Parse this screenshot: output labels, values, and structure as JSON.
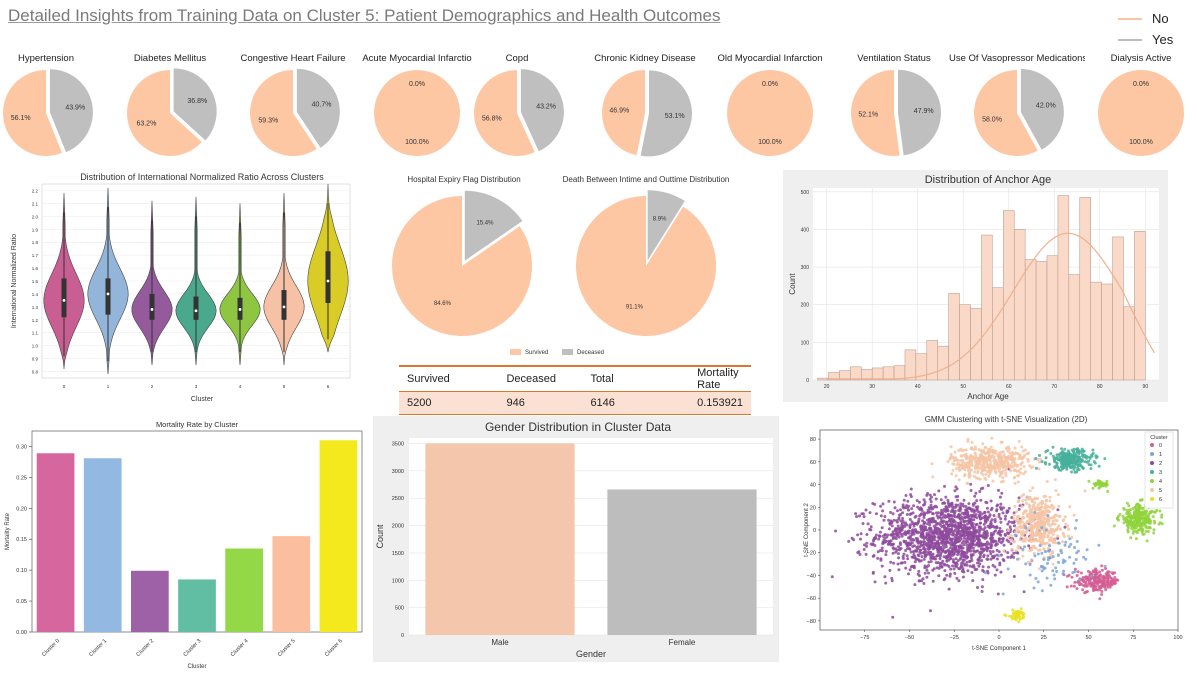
{
  "dashboard": {
    "title": "Detailed Insights from Training Data on  Cluster 5: Patient Demographics and Health Outcomes",
    "legend": [
      {
        "label": "No",
        "color": "#f7c5a5"
      },
      {
        "label": "Yes",
        "color": "#bdbdbd"
      }
    ]
  },
  "colors": {
    "no": "#fdc7a4",
    "yes": "#bfbfbf",
    "panel": "#efefef"
  },
  "chart_data": [
    {
      "id": "condition-pies",
      "type": "pie",
      "series": [
        {
          "name": "Hypertension",
          "no": 56.1,
          "yes": 43.9
        },
        {
          "name": "Diabetes Mellitus",
          "no": 63.2,
          "yes": 36.8
        },
        {
          "name": "Congestive Heart Failure",
          "no": 59.3,
          "yes": 40.7
        },
        {
          "name": "Acute Myocardial Infarctio",
          "no": 100.0,
          "yes": 0.0
        },
        {
          "name": "Copd",
          "no": 56.8,
          "yes": 43.2
        },
        {
          "name": "Chronic Kidney Disease",
          "no": 46.9,
          "yes": 53.1
        },
        {
          "name": "Old Myocardial Infarction",
          "no": 100.0,
          "yes": 0.0
        },
        {
          "name": "Ventilation Status",
          "no": 52.1,
          "yes": 47.9
        },
        {
          "name": "Use Of Vasopressor Medications",
          "no": 58.0,
          "yes": 42.0
        },
        {
          "name": "Dialysis Active",
          "no": 100.0,
          "yes": 0.0
        }
      ]
    },
    {
      "id": "inr-violin",
      "type": "violin",
      "title": "Distribution of International Normalized Ratio Across Clusters",
      "xlabel": "Cluster",
      "ylabel": "International Normalized Ratio",
      "categories": [
        "0",
        "1",
        "2",
        "3",
        "4",
        "5",
        "6"
      ],
      "yticks": [
        "0.8",
        "0.9",
        "1.0",
        "1.1",
        "1.2",
        "1.3",
        "1.4",
        "1.5",
        "1.6",
        "1.7",
        "1.8",
        "1.9",
        "2.0",
        "2.1",
        "2.2"
      ],
      "ylim": [
        0.75,
        2.25
      ],
      "colors": [
        "#c95e93",
        "#93b5d9",
        "#955a9c",
        "#4aa88d",
        "#8ec641",
        "#f6c1a4",
        "#d9cc26"
      ],
      "stats": [
        {
          "min": 0.82,
          "q1": 1.22,
          "median": 1.35,
          "q3": 1.52,
          "max": 2.18
        },
        {
          "min": 0.78,
          "q1": 1.24,
          "median": 1.4,
          "q3": 1.52,
          "max": 2.22
        },
        {
          "min": 0.85,
          "q1": 1.2,
          "median": 1.28,
          "q3": 1.4,
          "max": 2.12
        },
        {
          "min": 0.85,
          "q1": 1.2,
          "median": 1.27,
          "q3": 1.38,
          "max": 2.15
        },
        {
          "min": 0.85,
          "q1": 1.2,
          "median": 1.28,
          "q3": 1.37,
          "max": 2.1
        },
        {
          "min": 0.85,
          "q1": 1.2,
          "median": 1.3,
          "q3": 1.43,
          "max": 2.18
        },
        {
          "min": 0.95,
          "q1": 1.33,
          "median": 1.5,
          "q3": 1.73,
          "max": 2.25
        }
      ]
    },
    {
      "id": "expiry-pie",
      "type": "pie",
      "title": "Hospital Expiry Flag Distribution",
      "labels": [
        "Survived",
        "Deceased"
      ],
      "values": [
        84.6,
        15.4
      ]
    },
    {
      "id": "death-pie",
      "type": "pie",
      "title": "Death Between Intime and Outtime Distribution",
      "labels": [
        "Survived",
        "Deceased"
      ],
      "values": [
        91.1,
        8.9
      ]
    },
    {
      "id": "mortality-table",
      "type": "table",
      "headers": [
        "Survived",
        "Deceased",
        "Total",
        "Mortality Rate"
      ],
      "rows": [
        [
          "5200",
          "946",
          "6146",
          "0.153921"
        ]
      ]
    },
    {
      "id": "anchor-age-hist",
      "type": "bar",
      "title": "Distribution of Anchor Age",
      "xlabel": "Anchor Age",
      "ylabel": "Count",
      "xlim": [
        17,
        93
      ],
      "ylim": [
        0,
        510
      ],
      "xticks": [
        20,
        30,
        40,
        50,
        60,
        70,
        80,
        90
      ],
      "yticks": [
        0,
        100,
        200,
        300,
        400,
        500
      ],
      "bin_start": 18,
      "bin_width": 2.4,
      "values": [
        5,
        20,
        25,
        35,
        28,
        32,
        35,
        38,
        80,
        70,
        105,
        90,
        230,
        200,
        190,
        385,
        245,
        450,
        400,
        320,
        315,
        330,
        490,
        280,
        485,
        260,
        255,
        380,
        195,
        395
      ]
    },
    {
      "id": "mortality-by-cluster",
      "type": "bar",
      "title": "Mortality Rate by Cluster",
      "xlabel": "Cluster",
      "ylabel": "Mortality Rate",
      "categories": [
        "Cluster 0",
        "Cluster 1",
        "Cluster 2",
        "Cluster 3",
        "Cluster 4",
        "Cluster 5",
        "Cluster 6"
      ],
      "values": [
        0.289,
        0.281,
        0.099,
        0.085,
        0.135,
        0.155,
        0.31
      ],
      "colors": [
        "#d6679e",
        "#93b9e3",
        "#9d62a5",
        "#62bea2",
        "#93d846",
        "#fbbf9f",
        "#f3e91d"
      ],
      "ylim": [
        0,
        0.325
      ],
      "yticks": [
        "0.00",
        "0.05",
        "0.10",
        "0.15",
        "0.20",
        "0.25",
        "0.30"
      ]
    },
    {
      "id": "gender-bars",
      "type": "bar",
      "title": "Gender Distribution in Cluster Data",
      "xlabel": "Gender",
      "ylabel": "Count",
      "categories": [
        "Male",
        "Female"
      ],
      "values": [
        3500,
        2660
      ],
      "colors": [
        "#f4c7ad",
        "#bdbdbd"
      ],
      "ylim": [
        0,
        3600
      ],
      "yticks": [
        0,
        500,
        1000,
        1500,
        2000,
        2500,
        3000,
        3500
      ]
    },
    {
      "id": "tsne-scatter",
      "type": "scatter",
      "title": "GMM Clustering with t-SNE Visualization (2D)",
      "xlabel": "t-SNE Component 1",
      "ylabel": "t-SNE Component 2",
      "legend_title": "Cluster",
      "legend": [
        "0",
        "1",
        "2",
        "3",
        "4",
        "5",
        "6"
      ],
      "colors": [
        "#d45d93",
        "#7aa6db",
        "#8e4a9c",
        "#46b09b",
        "#8fd33c",
        "#f6c4a5",
        "#e8e21e"
      ],
      "xlim": [
        -100,
        100
      ],
      "ylim": [
        -88,
        88
      ],
      "xticks": [
        -75,
        -50,
        -25,
        0,
        25,
        50,
        75,
        100
      ],
      "yticks": [
        -80,
        -60,
        -40,
        -20,
        0,
        20,
        40,
        60,
        80
      ],
      "groups": [
        {
          "cluster": "2",
          "cx": -28,
          "cy": -5,
          "rx": 45,
          "ry": 38,
          "n": 1500
        },
        {
          "cluster": "5",
          "cx": -5,
          "cy": 60,
          "rx": 24,
          "ry": 16,
          "n": 450
        },
        {
          "cluster": "5",
          "cx": 22,
          "cy": 5,
          "rx": 16,
          "ry": 30,
          "n": 420
        },
        {
          "cluster": "3",
          "cx": 40,
          "cy": 62,
          "rx": 14,
          "ry": 10,
          "n": 260
        },
        {
          "cluster": "4",
          "cx": 78,
          "cy": 10,
          "rx": 12,
          "ry": 14,
          "n": 260
        },
        {
          "cluster": "4",
          "cx": 57,
          "cy": 40,
          "rx": 5,
          "ry": 4,
          "n": 40
        },
        {
          "cluster": "0",
          "cx": 55,
          "cy": -45,
          "rx": 14,
          "ry": 10,
          "n": 200
        },
        {
          "cluster": "6",
          "cx": 10,
          "cy": -75,
          "rx": 6,
          "ry": 5,
          "n": 40
        },
        {
          "cluster": "1",
          "cx": 30,
          "cy": -25,
          "rx": 25,
          "ry": 30,
          "n": 80
        }
      ]
    }
  ]
}
